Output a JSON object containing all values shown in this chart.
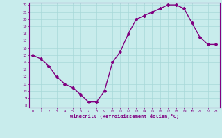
{
  "x": [
    0,
    1,
    2,
    3,
    4,
    5,
    6,
    7,
    8,
    9,
    10,
    11,
    12,
    13,
    14,
    15,
    16,
    17,
    18,
    19,
    20,
    21,
    22,
    23
  ],
  "y": [
    15,
    14.5,
    13.5,
    12,
    11,
    10.5,
    9.5,
    8.5,
    8.5,
    10,
    14,
    15.5,
    18,
    20,
    20.5,
    21,
    21.5,
    22,
    22,
    21.5,
    19.5,
    17.5,
    16.5,
    16.5
  ],
  "line_color": "#800080",
  "marker": "D",
  "marker_size": 2,
  "bg_color": "#c8ecec",
  "grid_color": "#a8d8d8",
  "xlabel": "Windchill (Refroidissement éolien,°C)",
  "xlabel_color": "#800080",
  "tick_color": "#800080",
  "xlim": [
    -0.5,
    23.5
  ],
  "ylim": [
    7.7,
    22.3
  ],
  "yticks": [
    8,
    9,
    10,
    11,
    12,
    13,
    14,
    15,
    16,
    17,
    18,
    19,
    20,
    21,
    22
  ],
  "xticks": [
    0,
    1,
    2,
    3,
    4,
    5,
    6,
    7,
    8,
    9,
    10,
    11,
    12,
    13,
    14,
    15,
    16,
    17,
    18,
    19,
    20,
    21,
    22,
    23
  ],
  "spine_color": "#800080",
  "line_width": 1.0
}
